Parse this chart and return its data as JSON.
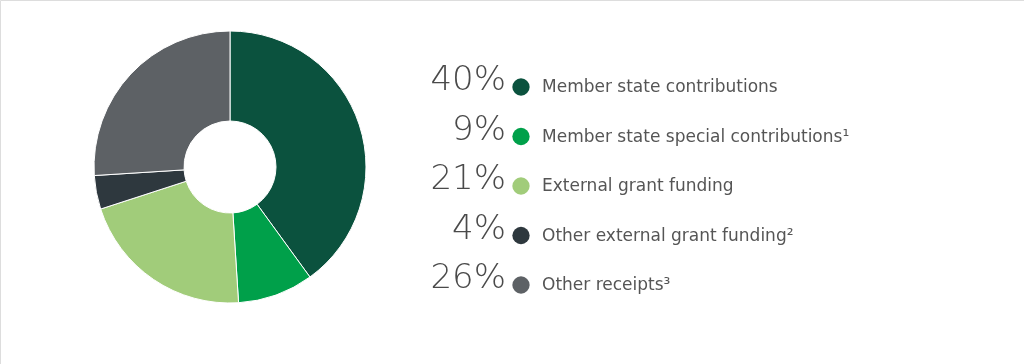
{
  "chart_data": {
    "type": "donut",
    "categories": [
      "Member state contributions",
      "Member state special contributions¹",
      "External grant funding",
      "Other external grant funding²",
      "Other receipts³"
    ],
    "values": [
      40,
      9,
      21,
      4,
      26
    ],
    "value_labels": [
      "40%",
      "9%",
      "21%",
      "4%",
      "26%"
    ],
    "colors": [
      "#0b523e",
      "#00a04a",
      "#a1cc7a",
      "#2e383e",
      "#5d6165"
    ],
    "legend": "right"
  }
}
